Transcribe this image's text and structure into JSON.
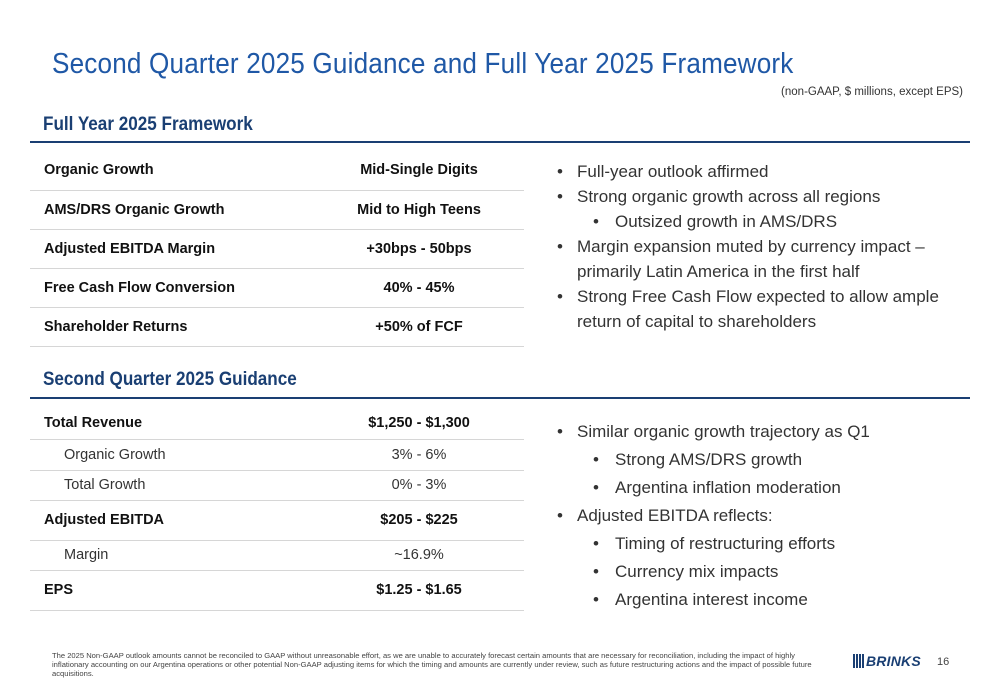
{
  "title": "Second Quarter 2025 Guidance and Full Year 2025 Framework",
  "units_note": "(non-GAAP, $ millions, except EPS)",
  "full_year": {
    "heading": "Full Year 2025 Framework",
    "rows": [
      {
        "label": "Organic Growth",
        "value": "Mid-Single Digits"
      },
      {
        "label": "AMS/DRS Organic Growth",
        "value": "Mid to High Teens"
      },
      {
        "label": "Adjusted EBITDA Margin",
        "value": "+30bps - 50bps"
      },
      {
        "label": "Free Cash Flow Conversion",
        "value": "40% - 45%"
      },
      {
        "label": "Shareholder Returns",
        "value": "+50% of FCF"
      }
    ],
    "bullets": [
      "Full-year outlook affirmed",
      "Strong organic growth across all regions",
      "Outsized growth in AMS/DRS",
      "Margin expansion muted by currency impact – primarily Latin America in the first half",
      "Strong Free Cash Flow expected to allow ample return of capital to shareholders"
    ]
  },
  "q2": {
    "heading": "Second Quarter 2025 Guidance",
    "rows": [
      {
        "label": "Total Revenue",
        "value": "$1,250 - $1,300"
      },
      {
        "label": "Organic Growth",
        "value": "3% - 6%"
      },
      {
        "label": "Total Growth",
        "value": "0% - 3%"
      },
      {
        "label": "Adjusted EBITDA",
        "value": "$205 - $225"
      },
      {
        "label": "Margin",
        "value": "~16.9%"
      },
      {
        "label": "EPS",
        "value": "$1.25 - $1.65"
      }
    ],
    "bullets": [
      "Similar organic growth trajectory as Q1",
      "Strong AMS/DRS growth",
      "Argentina inflation moderation",
      "Adjusted EBITDA reflects:",
      "Timing of restructuring efforts",
      "Currency mix impacts",
      "Argentina interest income"
    ]
  },
  "footnote": "The 2025 Non-GAAP outlook amounts cannot be reconciled to GAAP without unreasonable effort, as we are unable to accurately forecast certain amounts that are necessary for reconciliation, including the impact of highly inflationary accounting on our Argentina operations or other potential Non-GAAP adjusting items for which the timing and amounts are currently under review, such as future restructuring actions and the impact of possible future acquisitions.",
  "logo_text": "BRINKS",
  "page_number": "16",
  "colors": {
    "title": "#1f58a6",
    "heading": "#1a3f73",
    "rule": "#1a3f73"
  }
}
